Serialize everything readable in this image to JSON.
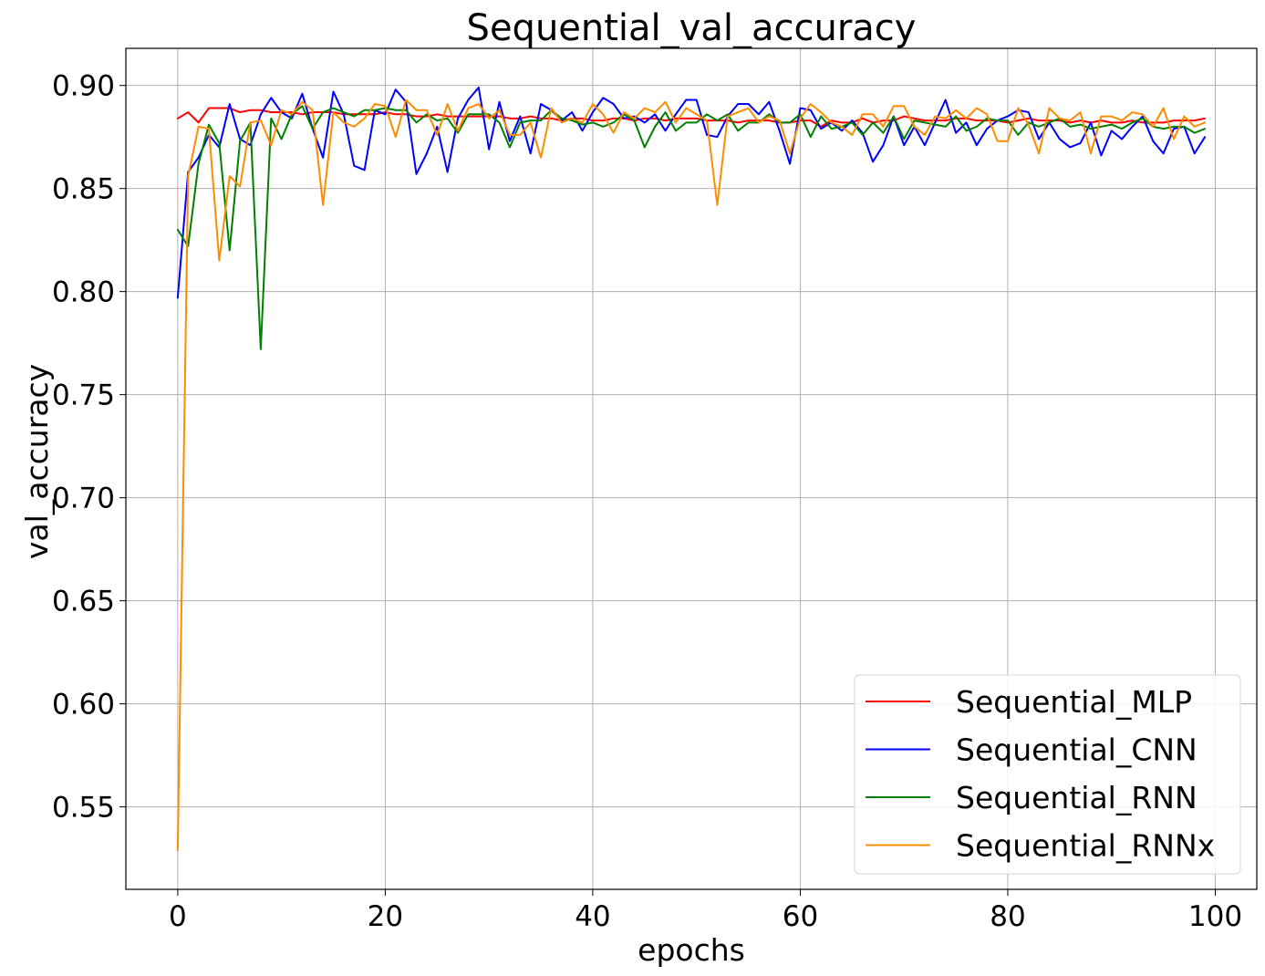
{
  "chart_data": {
    "type": "line",
    "title": "Sequential_val_accuracy",
    "xlabel": "epochs",
    "ylabel": "val_accuracy",
    "xlim": [
      -5,
      104
    ],
    "ylim": [
      0.51,
      0.918
    ],
    "xticks": [
      0,
      20,
      40,
      60,
      80,
      100
    ],
    "xtick_labels": [
      "0",
      "20",
      "40",
      "60",
      "80",
      "100"
    ],
    "yticks": [
      0.55,
      0.6,
      0.65,
      0.7,
      0.75,
      0.8,
      0.85,
      0.9
    ],
    "ytick_labels": [
      "0.55",
      "0.60",
      "0.65",
      "0.70",
      "0.75",
      "0.80",
      "0.85",
      "0.90"
    ],
    "grid": true,
    "legend_position": "lower-right",
    "series": [
      {
        "name": "Sequential_MLP",
        "color": "#ff0000",
        "values": [
          0.884,
          0.887,
          0.882,
          0.889,
          0.889,
          0.889,
          0.887,
          0.888,
          0.888,
          0.887,
          0.887,
          0.887,
          0.886,
          0.887,
          0.887,
          0.887,
          0.886,
          0.886,
          0.886,
          0.886,
          0.887,
          0.886,
          0.886,
          0.885,
          0.885,
          0.886,
          0.885,
          0.885,
          0.885,
          0.885,
          0.885,
          0.885,
          0.884,
          0.884,
          0.885,
          0.884,
          0.884,
          0.883,
          0.884,
          0.884,
          0.883,
          0.883,
          0.884,
          0.884,
          0.883,
          0.884,
          0.884,
          0.883,
          0.884,
          0.884,
          0.884,
          0.883,
          0.883,
          0.883,
          0.882,
          0.883,
          0.883,
          0.883,
          0.882,
          0.882,
          0.883,
          0.883,
          0.88,
          0.883,
          0.882,
          0.882,
          0.884,
          0.882,
          0.883,
          0.883,
          0.885,
          0.884,
          0.883,
          0.883,
          0.883,
          0.884,
          0.884,
          0.883,
          0.883,
          0.883,
          0.882,
          0.883,
          0.884,
          0.883,
          0.883,
          0.883,
          0.882,
          0.883,
          0.882,
          0.883,
          0.882,
          0.882,
          0.883,
          0.882,
          0.882,
          0.882,
          0.883,
          0.883,
          0.883,
          0.884
        ]
      },
      {
        "name": "Sequential_CNN",
        "color": "#0000ff",
        "values": [
          0.797,
          0.858,
          0.865,
          0.876,
          0.87,
          0.891,
          0.874,
          0.871,
          0.886,
          0.894,
          0.887,
          0.884,
          0.896,
          0.879,
          0.865,
          0.897,
          0.886,
          0.861,
          0.859,
          0.888,
          0.886,
          0.898,
          0.892,
          0.857,
          0.867,
          0.88,
          0.858,
          0.884,
          0.893,
          0.899,
          0.869,
          0.892,
          0.873,
          0.885,
          0.867,
          0.891,
          0.888,
          0.883,
          0.887,
          0.878,
          0.887,
          0.894,
          0.891,
          0.884,
          0.885,
          0.882,
          0.886,
          0.878,
          0.886,
          0.893,
          0.893,
          0.876,
          0.875,
          0.885,
          0.891,
          0.891,
          0.886,
          0.892,
          0.878,
          0.862,
          0.889,
          0.888,
          0.879,
          0.882,
          0.878,
          0.883,
          0.877,
          0.863,
          0.871,
          0.885,
          0.871,
          0.88,
          0.871,
          0.882,
          0.893,
          0.877,
          0.882,
          0.871,
          0.879,
          0.883,
          0.885,
          0.888,
          0.887,
          0.874,
          0.882,
          0.874,
          0.87,
          0.872,
          0.882,
          0.866,
          0.878,
          0.874,
          0.88,
          0.885,
          0.873,
          0.867,
          0.879,
          0.88,
          0.867,
          0.875
        ]
      },
      {
        "name": "Sequential_RNN",
        "color": "#008000",
        "values": [
          0.83,
          0.822,
          0.862,
          0.881,
          0.872,
          0.82,
          0.873,
          0.882,
          0.772,
          0.884,
          0.874,
          0.886,
          0.89,
          0.879,
          0.887,
          0.889,
          0.887,
          0.885,
          0.888,
          0.888,
          0.889,
          0.888,
          0.888,
          0.882,
          0.886,
          0.883,
          0.884,
          0.877,
          0.886,
          0.886,
          0.886,
          0.882,
          0.87,
          0.882,
          0.883,
          0.883,
          0.888,
          0.884,
          0.883,
          0.881,
          0.882,
          0.88,
          0.882,
          0.886,
          0.883,
          0.87,
          0.88,
          0.887,
          0.878,
          0.882,
          0.882,
          0.886,
          0.883,
          0.886,
          0.878,
          0.882,
          0.882,
          0.886,
          0.882,
          0.882,
          0.886,
          0.875,
          0.885,
          0.879,
          0.88,
          0.882,
          0.876,
          0.882,
          0.877,
          0.885,
          0.874,
          0.883,
          0.882,
          0.881,
          0.88,
          0.885,
          0.878,
          0.88,
          0.884,
          0.883,
          0.883,
          0.876,
          0.882,
          0.88,
          0.882,
          0.884,
          0.88,
          0.881,
          0.879,
          0.88,
          0.881,
          0.879,
          0.882,
          0.884,
          0.88,
          0.879,
          0.88,
          0.88,
          0.877,
          0.879
        ]
      },
      {
        "name": "Sequential_RNNx",
        "color": "#ff8c00",
        "values": [
          0.529,
          0.856,
          0.88,
          0.879,
          0.815,
          0.856,
          0.851,
          0.882,
          0.883,
          0.871,
          0.888,
          0.886,
          0.892,
          0.888,
          0.842,
          0.887,
          0.882,
          0.88,
          0.884,
          0.891,
          0.89,
          0.875,
          0.893,
          0.888,
          0.888,
          0.876,
          0.891,
          0.878,
          0.889,
          0.891,
          0.884,
          0.888,
          0.876,
          0.876,
          0.882,
          0.865,
          0.889,
          0.882,
          0.884,
          0.882,
          0.891,
          0.886,
          0.877,
          0.887,
          0.884,
          0.889,
          0.887,
          0.892,
          0.882,
          0.889,
          0.886,
          0.883,
          0.842,
          0.885,
          0.887,
          0.889,
          0.882,
          0.885,
          0.883,
          0.867,
          0.884,
          0.891,
          0.887,
          0.882,
          0.88,
          0.876,
          0.886,
          0.886,
          0.88,
          0.89,
          0.89,
          0.88,
          0.876,
          0.885,
          0.884,
          0.888,
          0.884,
          0.889,
          0.886,
          0.873,
          0.873,
          0.889,
          0.881,
          0.867,
          0.889,
          0.884,
          0.883,
          0.887,
          0.867,
          0.885,
          0.885,
          0.883,
          0.887,
          0.886,
          0.88,
          0.889,
          0.874,
          0.885,
          0.88,
          0.882
        ]
      }
    ]
  }
}
